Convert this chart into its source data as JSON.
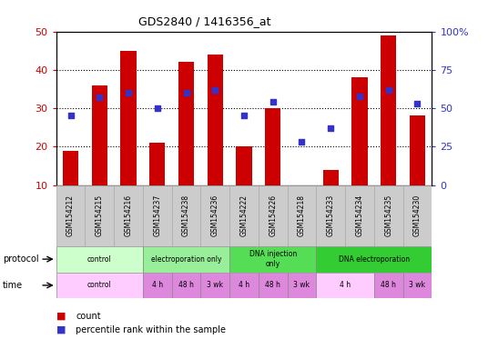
{
  "title": "GDS2840 / 1416356_at",
  "samples": [
    "GSM154212",
    "GSM154215",
    "GSM154216",
    "GSM154237",
    "GSM154238",
    "GSM154236",
    "GSM154222",
    "GSM154226",
    "GSM154218",
    "GSM154233",
    "GSM154234",
    "GSM154235",
    "GSM154230"
  ],
  "bar_values": [
    19,
    36,
    45,
    21,
    42,
    44,
    20,
    30,
    10,
    14,
    38,
    49,
    28
  ],
  "dot_values_pct": [
    45,
    57,
    60,
    50,
    60,
    62,
    45,
    54,
    28,
    37,
    58,
    62,
    53
  ],
  "ylim": [
    10,
    50
  ],
  "y2lim": [
    0,
    100
  ],
  "yticks": [
    10,
    20,
    30,
    40,
    50
  ],
  "y2ticks": [
    0,
    25,
    50,
    75,
    100
  ],
  "bar_color": "#cc0000",
  "dot_color": "#3333cc",
  "grid_color": "#000000",
  "protocol_groups": [
    {
      "label": "control",
      "start": 0,
      "end": 3,
      "color": "#ccffcc"
    },
    {
      "label": "electroporation only",
      "start": 3,
      "end": 6,
      "color": "#99ee99"
    },
    {
      "label": "DNA injection\nonly",
      "start": 6,
      "end": 9,
      "color": "#55dd55"
    },
    {
      "label": "DNA electroporation",
      "start": 9,
      "end": 13,
      "color": "#33cc33"
    }
  ],
  "time_groups": [
    {
      "label": "control",
      "start": 0,
      "end": 3,
      "color": "#ffccff"
    },
    {
      "label": "4 h",
      "start": 3,
      "end": 4,
      "color": "#dd88dd"
    },
    {
      "label": "48 h",
      "start": 4,
      "end": 5,
      "color": "#dd88dd"
    },
    {
      "label": "3 wk",
      "start": 5,
      "end": 6,
      "color": "#dd88dd"
    },
    {
      "label": "4 h",
      "start": 6,
      "end": 7,
      "color": "#dd88dd"
    },
    {
      "label": "48 h",
      "start": 7,
      "end": 8,
      "color": "#dd88dd"
    },
    {
      "label": "3 wk",
      "start": 8,
      "end": 9,
      "color": "#dd88dd"
    },
    {
      "label": "4 h",
      "start": 9,
      "end": 11,
      "color": "#ffccff"
    },
    {
      "label": "48 h",
      "start": 11,
      "end": 12,
      "color": "#dd88dd"
    },
    {
      "label": "3 wk",
      "start": 12,
      "end": 13,
      "color": "#dd88dd"
    }
  ],
  "bar_color_legend": "#cc0000",
  "dot_color_legend": "#3333cc",
  "bg_color": "#ffffff",
  "tick_bg": "#cccccc",
  "tick_border": "#aaaaaa"
}
